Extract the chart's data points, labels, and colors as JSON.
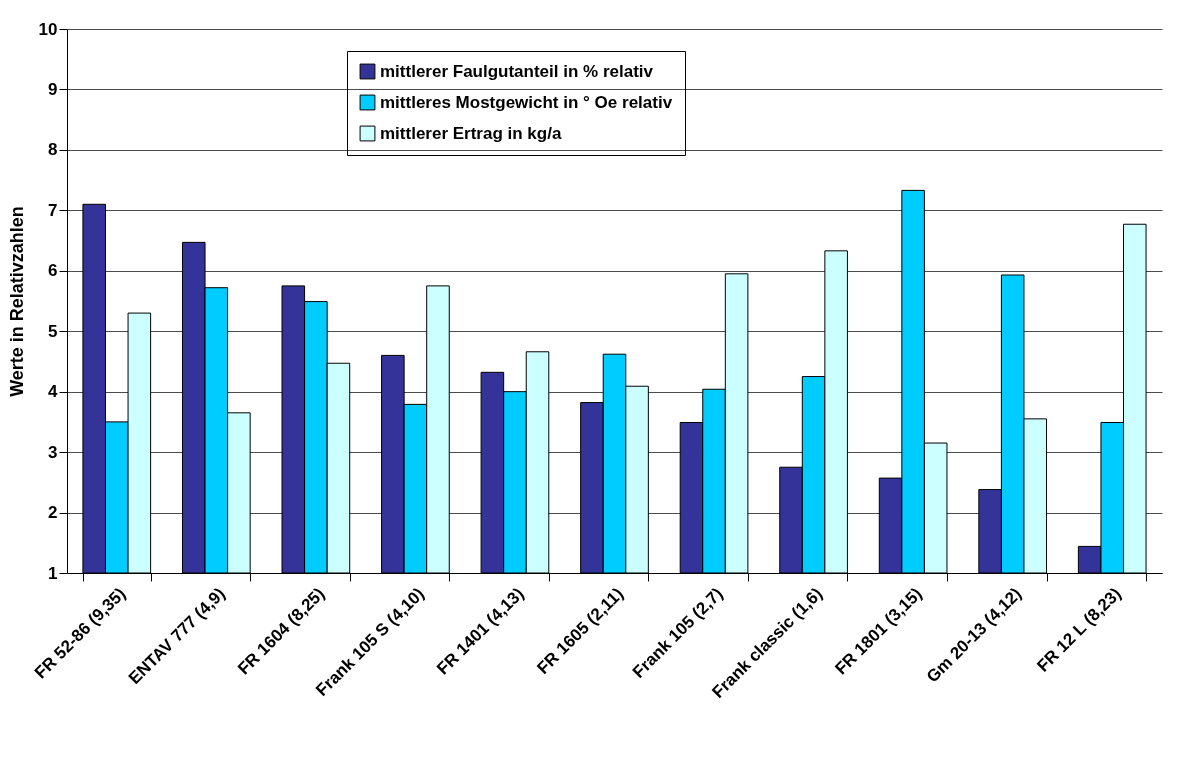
{
  "chart_data": {
    "type": "bar",
    "ylabel": "Werte in Relativzahlen",
    "categories": [
      "FR 52-86  (9,35)",
      "ENTAV 777  (4,9)",
      "FR 1604  (8,25)",
      "Frank 105 S  (4,10)",
      "FR 1401  (4,13)",
      "FR 1605  (2,11)",
      "Frank 105  (2,7)",
      "Frank classic  (1,6)",
      "FR 1801  (3,15)",
      "Gm 20-13  (4,12)",
      "FR 12 L  (8,23)"
    ],
    "series": [
      {
        "name": "mittlerer Faulgutanteil in % relativ",
        "color": "#333399",
        "values": [
          7.1,
          6.47,
          5.75,
          4.6,
          4.32,
          3.82,
          3.49,
          2.75,
          2.57,
          2.38,
          1.44
        ]
      },
      {
        "name": "mittleres Mostgewicht in ° Oe relativ",
        "color": "#00ccff",
        "values": [
          3.5,
          5.72,
          5.49,
          3.79,
          4.0,
          4.62,
          4.04,
          4.25,
          7.33,
          5.93,
          3.49
        ]
      },
      {
        "name": "mittlerer Ertrag in kg/a",
        "color": "#ccffff",
        "values": [
          5.3,
          3.65,
          4.47,
          5.75,
          4.66,
          4.09,
          5.95,
          6.33,
          3.15,
          3.55,
          6.77
        ]
      }
    ],
    "ylim": [
      1,
      10
    ],
    "yticks": [
      1,
      2,
      3,
      4,
      5,
      6,
      7,
      8,
      9,
      10
    ],
    "grid": "y",
    "legend": "top"
  }
}
